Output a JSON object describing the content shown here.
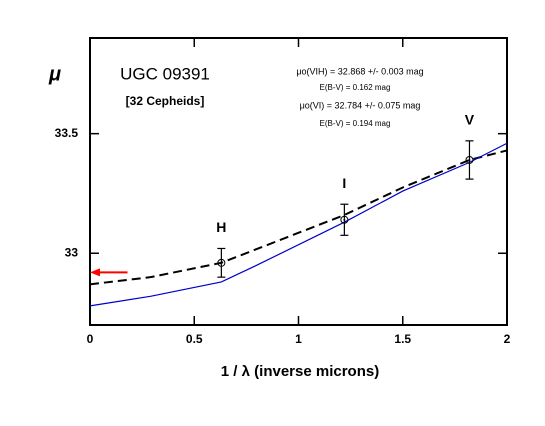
{
  "chart_data": {
    "type": "line",
    "title": "UGC 09391",
    "title_color": "#0000cc",
    "subtitle": "[32 Cepheids]",
    "annotations": [
      "μo(VIH) = 32.868 +/- 0.003 mag",
      "E(B-V) = 0.162 mag",
      "μo(VI) = 32.784 +/- 0.075 mag",
      "E(B-V) = 0.194 mag"
    ],
    "xlabel": "1 / λ (inverse microns)",
    "ylabel": "μ",
    "xlim": [
      0,
      2
    ],
    "ylim": [
      32.7,
      33.9
    ],
    "xticks": [
      0,
      0.5,
      1,
      1.5,
      2
    ],
    "yticks": [
      33,
      33.5
    ],
    "series": [
      {
        "color": "#000000",
        "style": "dashed",
        "x": [
          0,
          0.29,
          0.63,
          1.22,
          1.5,
          1.82,
          2
        ],
        "values": [
          32.87,
          32.9,
          32.96,
          33.16,
          33.275,
          33.39,
          33.43
        ]
      },
      {
        "color": "#0000cc",
        "style": "solid",
        "x": [
          0,
          0.29,
          0.63,
          0.8,
          1.22,
          1.5,
          1.82,
          2
        ],
        "values": [
          32.78,
          32.82,
          32.88,
          32.95,
          33.13,
          33.26,
          33.38,
          33.46
        ]
      }
    ],
    "points": {
      "color": "#000000",
      "labels": [
        "H",
        "I",
        "V"
      ],
      "x": [
        0.63,
        1.22,
        1.82
      ],
      "values": [
        32.96,
        33.14,
        33.39
      ],
      "errors": [
        0.06,
        0.065,
        0.08
      ]
    },
    "arrow": {
      "y": 32.92,
      "x": [
        0.18,
        0
      ],
      "color": "#ff0000"
    }
  }
}
